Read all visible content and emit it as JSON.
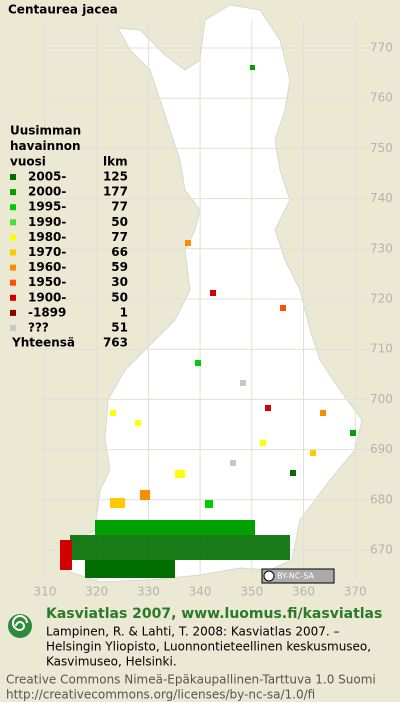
{
  "title": "Centaurea jacea",
  "legend": {
    "heading": [
      "Uusimman",
      "havainnon",
      "vuosi"
    ],
    "count_heading": "lkm",
    "rows": [
      {
        "label": "2005-",
        "count": 125,
        "color": "#006e00"
      },
      {
        "label": "2000-",
        "count": 177,
        "color": "#00a000"
      },
      {
        "label": "1995-",
        "count": 77,
        "color": "#00cc00"
      },
      {
        "label": "1990-",
        "count": 50,
        "color": "#44e044"
      },
      {
        "label": "1980-",
        "count": 77,
        "color": "#ffff00"
      },
      {
        "label": "1970-",
        "count": 66,
        "color": "#ffc800"
      },
      {
        "label": "1960-",
        "count": 59,
        "color": "#ff8c00"
      },
      {
        "label": "1950-",
        "count": 30,
        "color": "#ff5000"
      },
      {
        "label": "1900-",
        "count": 50,
        "color": "#d20000"
      },
      {
        "label": "-1899",
        "count": 1,
        "color": "#8c0000"
      },
      {
        "label": "???",
        "count": 51,
        "color": "#c8c8c8"
      }
    ],
    "total": {
      "label": "Yhteensä",
      "count": 763
    }
  },
  "y_labels": [
    "770",
    "760",
    "750",
    "740",
    "730",
    "720",
    "710",
    "700",
    "690",
    "680",
    "670"
  ],
  "x_labels": [
    "310",
    "320",
    "330",
    "340",
    "350",
    "360",
    "370"
  ],
  "license_badge": "BY-NC-SA",
  "footer": {
    "site": "Kasviatlas 2007, www.luomus.fi/kasviatlas",
    "citation": [
      "Lampinen, R. & Lahti, T. 2008: Kasviatlas 2007. –",
      "Helsingin Yliopisto, Luonnontieteellinen keskusmuseo,",
      "Kasvimuseo, Helsinki."
    ],
    "license": [
      "Creative Commons Nimeä-Epäkaupallinen-Tarttuva 1.0 Suomi",
      "http://creativecommons.org/licenses/by-nc-sa/1.0/fi"
    ]
  }
}
